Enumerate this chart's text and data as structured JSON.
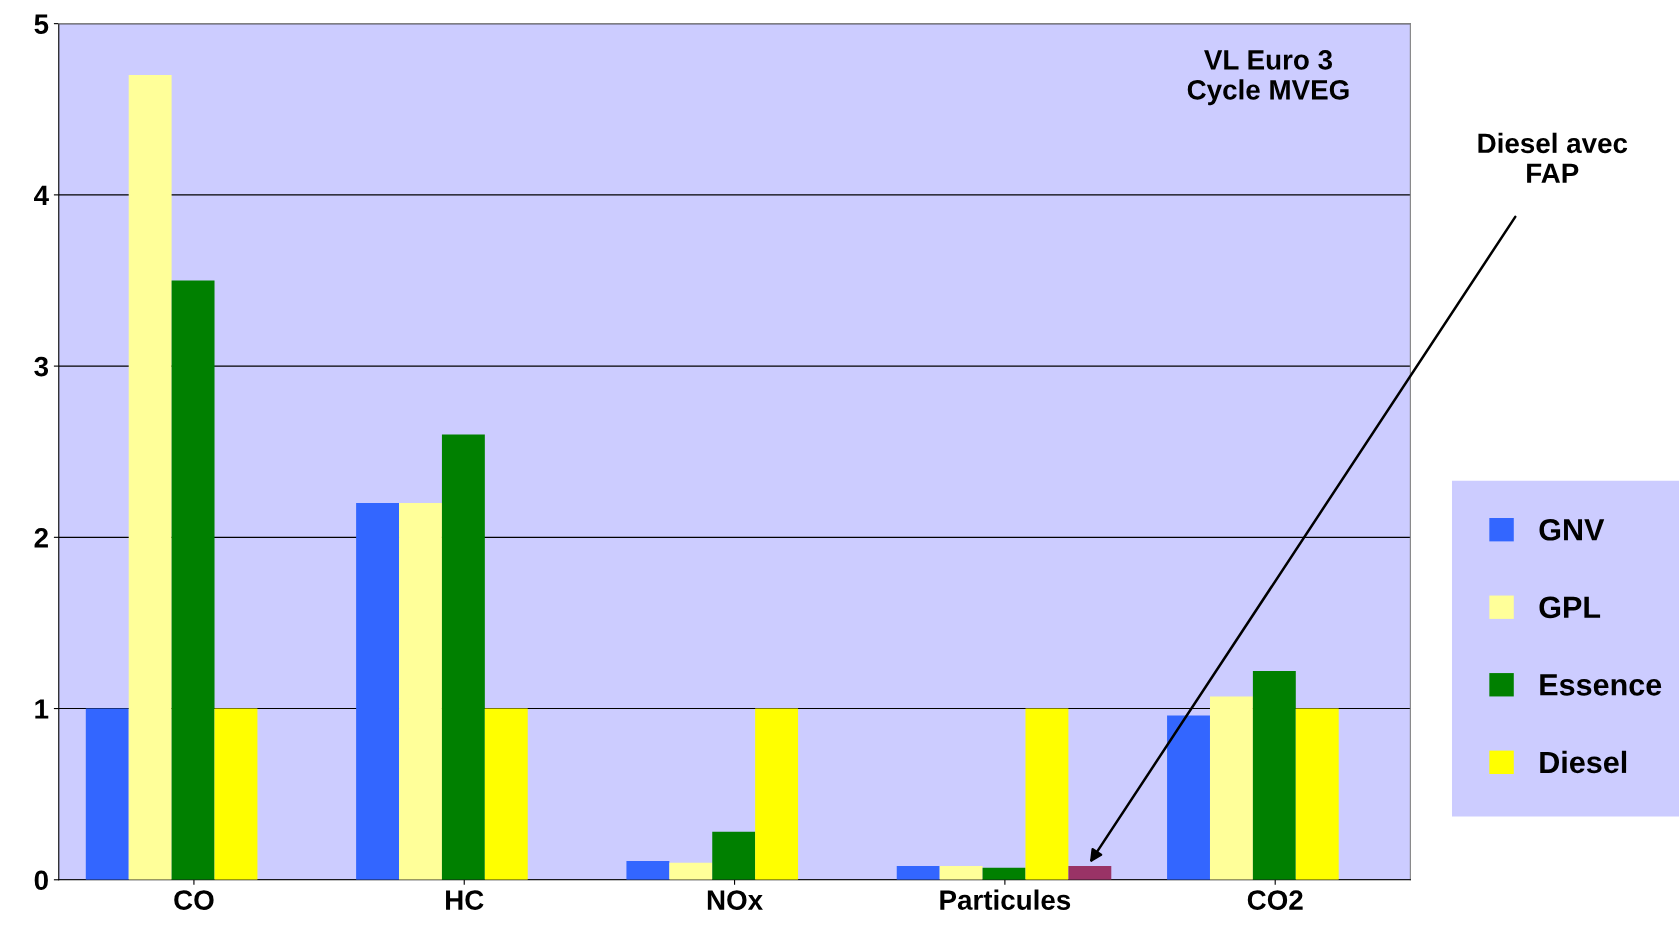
{
  "chart_data": {
    "type": "bar",
    "categories": [
      "CO",
      "HC",
      "NOx",
      "Particules",
      "CO2"
    ],
    "series": [
      {
        "name": "GNV",
        "color": "#3366ff",
        "values": [
          1.0,
          2.2,
          0.11,
          0.08,
          0.96
        ]
      },
      {
        "name": "GPL",
        "color": "#ffff99",
        "values": [
          4.7,
          2.2,
          0.1,
          0.08,
          1.07
        ]
      },
      {
        "name": "Essence",
        "color": "#008000",
        "values": [
          3.5,
          2.6,
          0.28,
          0.07,
          1.22
        ]
      },
      {
        "name": "Diesel",
        "color": "#ffff00",
        "values": [
          1.0,
          1.0,
          1.0,
          1.0,
          1.0
        ]
      },
      {
        "color": "#993366",
        "values": [
          null,
          null,
          null,
          0.08,
          null
        ]
      }
    ],
    "ylim": [
      0,
      5
    ],
    "yticks": [
      0,
      1,
      2,
      3,
      4,
      5
    ],
    "grid": "y",
    "legend": "right",
    "annotations": [
      "VL Euro 3\nCycle MVEG",
      "Diesel avec\nFAP"
    ]
  }
}
